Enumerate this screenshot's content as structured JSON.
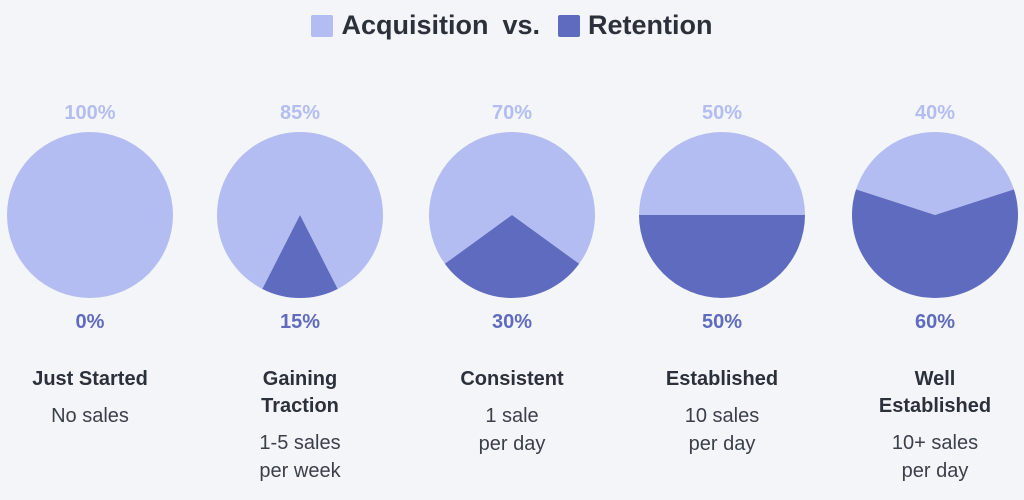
{
  "chart_data": {
    "type": "pie",
    "legend_separator": "vs.",
    "categories": [
      "Just Started",
      "Gaining Traction",
      "Consistent",
      "Established",
      "Well Established"
    ],
    "descriptions": [
      [
        "No sales"
      ],
      [
        "1-5 sales",
        "per week"
      ],
      [
        "1 sale",
        "per day"
      ],
      [
        "10 sales",
        "per day"
      ],
      [
        "10+ sales",
        "per day"
      ]
    ],
    "series": [
      {
        "name": "Acquisition",
        "color": "#b3bdf1",
        "values": [
          100,
          85,
          70,
          50,
          40
        ],
        "value_labels": [
          "100%",
          "85%",
          "70%",
          "50%",
          "40%"
        ]
      },
      {
        "name": "Retention",
        "color": "#5f6bbf",
        "values": [
          0,
          15,
          30,
          50,
          60
        ],
        "value_labels": [
          "0%",
          "15%",
          "30%",
          "50%",
          "60%"
        ]
      }
    ]
  }
}
